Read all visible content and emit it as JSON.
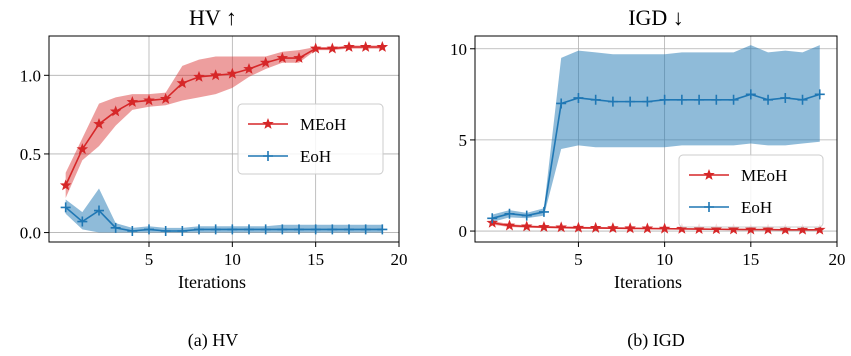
{
  "chart_data": [
    {
      "type": "line",
      "title": "HV ↑",
      "xlabel": "Iterations",
      "ylabel": "",
      "caption": "(a) HV",
      "xlim": [
        -1,
        20
      ],
      "ylim": [
        -0.06,
        1.25
      ],
      "xticks": [
        5,
        10,
        15,
        20
      ],
      "xtick_labels": [
        "5",
        "10",
        "15",
        "20"
      ],
      "yticks": [
        0.0,
        0.5,
        1.0
      ],
      "ytick_labels": [
        "0.0",
        "0.5",
        "1.0"
      ],
      "grid": true,
      "legend": "center-right",
      "x": [
        0,
        1,
        2,
        3,
        4,
        5,
        6,
        7,
        8,
        9,
        10,
        11,
        12,
        13,
        14,
        15,
        16,
        17,
        18,
        19
      ],
      "series": [
        {
          "name": "MEoH",
          "color": "#d62728",
          "marker": "star",
          "values": [
            0.3,
            0.53,
            0.69,
            0.77,
            0.83,
            0.84,
            0.85,
            0.95,
            0.99,
            1.0,
            1.01,
            1.04,
            1.08,
            1.11,
            1.11,
            1.17,
            1.17,
            1.18,
            1.18,
            1.18
          ],
          "lower": [
            0.22,
            0.46,
            0.55,
            0.68,
            0.78,
            0.8,
            0.81,
            0.84,
            0.86,
            0.88,
            0.92,
            0.99,
            1.04,
            1.08,
            1.08,
            1.16,
            1.16,
            1.17,
            1.17,
            1.17
          ],
          "upper": [
            0.38,
            0.6,
            0.82,
            0.86,
            0.88,
            0.88,
            0.89,
            1.06,
            1.1,
            1.12,
            1.12,
            1.12,
            1.12,
            1.15,
            1.16,
            1.18,
            1.18,
            1.19,
            1.19,
            1.19
          ]
        },
        {
          "name": "EoH",
          "color": "#1f77b4",
          "marker": "plus",
          "values": [
            0.16,
            0.07,
            0.14,
            0.03,
            0.01,
            0.02,
            0.01,
            0.01,
            0.02,
            0.02,
            0.02,
            0.02,
            0.02,
            0.02,
            0.02,
            0.02,
            0.02,
            0.02,
            0.02,
            0.02
          ],
          "lower": [
            0.12,
            0.02,
            0.0,
            0.0,
            0.0,
            0.0,
            0.0,
            0.0,
            0.0,
            0.0,
            0.0,
            0.0,
            0.0,
            0.0,
            0.0,
            0.0,
            0.0,
            0.0,
            0.0,
            0.0
          ],
          "upper": [
            0.21,
            0.13,
            0.28,
            0.06,
            0.03,
            0.04,
            0.03,
            0.03,
            0.04,
            0.04,
            0.04,
            0.04,
            0.04,
            0.05,
            0.05,
            0.05,
            0.05,
            0.05,
            0.05,
            0.05
          ]
        }
      ]
    },
    {
      "type": "line",
      "title": "IGD ↓",
      "xlabel": "Iterations",
      "ylabel": "",
      "caption": "(b) IGD",
      "xlim": [
        -1,
        20
      ],
      "ylim": [
        -0.6,
        10.7
      ],
      "xticks": [
        5,
        10,
        15,
        20
      ],
      "xtick_labels": [
        "5",
        "10",
        "15",
        "20"
      ],
      "yticks": [
        0,
        5,
        10
      ],
      "ytick_labels": [
        "0",
        "5",
        "10"
      ],
      "grid": true,
      "legend": "lower-right",
      "x": [
        0,
        1,
        2,
        3,
        4,
        5,
        6,
        7,
        8,
        9,
        10,
        11,
        12,
        13,
        14,
        15,
        16,
        17,
        18,
        19
      ],
      "series": [
        {
          "name": "MEoH",
          "color": "#d62728",
          "marker": "star",
          "values": [
            0.45,
            0.3,
            0.25,
            0.22,
            0.2,
            0.18,
            0.17,
            0.16,
            0.15,
            0.14,
            0.13,
            0.12,
            0.11,
            0.1,
            0.09,
            0.08,
            0.08,
            0.07,
            0.07,
            0.07
          ],
          "lower": [
            0.35,
            0.22,
            0.18,
            0.16,
            0.14,
            0.12,
            0.12,
            0.11,
            0.1,
            0.09,
            0.09,
            0.08,
            0.07,
            0.06,
            0.06,
            0.05,
            0.05,
            0.05,
            0.05,
            0.05
          ],
          "upper": [
            0.55,
            0.38,
            0.32,
            0.28,
            0.26,
            0.24,
            0.22,
            0.21,
            0.2,
            0.19,
            0.17,
            0.16,
            0.15,
            0.14,
            0.13,
            0.11,
            0.11,
            0.1,
            0.1,
            0.1
          ]
        },
        {
          "name": "EoH",
          "color": "#1f77b4",
          "marker": "plus",
          "values": [
            0.7,
            0.95,
            0.85,
            1.05,
            7.0,
            7.3,
            7.2,
            7.1,
            7.1,
            7.1,
            7.2,
            7.2,
            7.2,
            7.2,
            7.2,
            7.5,
            7.2,
            7.3,
            7.2,
            7.5
          ],
          "lower": [
            0.5,
            0.75,
            0.7,
            0.85,
            4.5,
            4.7,
            4.6,
            4.6,
            4.6,
            4.6,
            4.6,
            4.7,
            4.7,
            4.7,
            4.7,
            4.8,
            4.7,
            4.7,
            4.8,
            4.9
          ],
          "upper": [
            0.9,
            1.15,
            1.0,
            1.25,
            9.5,
            9.9,
            9.8,
            9.7,
            9.7,
            9.7,
            9.7,
            9.8,
            9.8,
            9.8,
            9.8,
            10.2,
            9.8,
            9.9,
            9.8,
            10.2
          ]
        }
      ]
    }
  ]
}
